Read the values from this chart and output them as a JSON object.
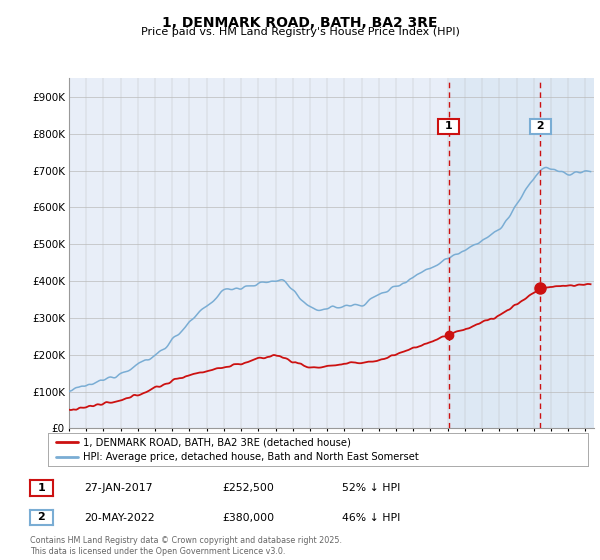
{
  "title": "1, DENMARK ROAD, BATH, BA2 3RE",
  "subtitle": "Price paid vs. HM Land Registry's House Price Index (HPI)",
  "legend_line1": "1, DENMARK ROAD, BATH, BA2 3RE (detached house)",
  "legend_line2": "HPI: Average price, detached house, Bath and North East Somerset",
  "transaction1_date": "27-JAN-2017",
  "transaction1_price": "£252,500",
  "transaction1_hpi": "52% ↓ HPI",
  "transaction2_date": "20-MAY-2022",
  "transaction2_price": "£380,000",
  "transaction2_hpi": "46% ↓ HPI",
  "footer": "Contains HM Land Registry data © Crown copyright and database right 2025.\nThis data is licensed under the Open Government Licence v3.0.",
  "hpi_color": "#7aadd4",
  "price_color": "#cc1111",
  "vline1_color": "#cc1111",
  "vline2_color": "#cc1111",
  "vline1_x": 2017.07,
  "vline2_x": 2022.38,
  "transaction1_y": 252500,
  "transaction2_y": 380000,
  "label1_box_color": "#cc1111",
  "label2_box_color": "#7aadd4",
  "ylim": [
    0,
    950000
  ],
  "xlim_start": 1995.0,
  "xlim_end": 2025.5,
  "bg_color": "#e8eef8",
  "bg_highlight_color": "#dde8f4"
}
